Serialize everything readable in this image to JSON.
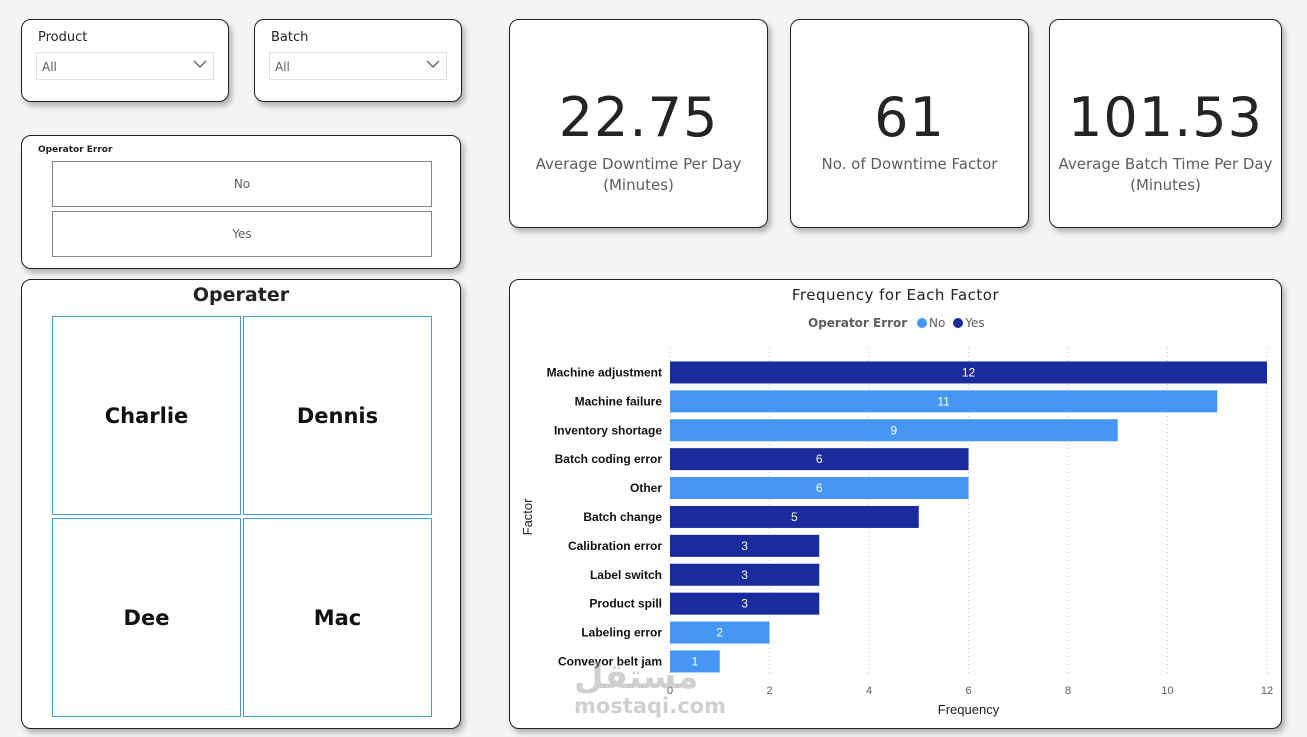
{
  "slicers": {
    "product": {
      "label": "Product",
      "value": "All"
    },
    "batch": {
      "label": "Batch",
      "value": "All"
    },
    "operator_error": {
      "label": "Operator Error",
      "options": [
        "No",
        "Yes"
      ]
    }
  },
  "operator": {
    "title": "Operater",
    "names": [
      "Charlie",
      "Dennis",
      "Dee",
      "Mac"
    ]
  },
  "kpis": [
    {
      "value": "22.75",
      "label": "Average Downtime Per Day (Minutes)"
    },
    {
      "value": "61",
      "label": "No. of Downtime Factor"
    },
    {
      "value": "101.53",
      "label": "Average Batch Time Per Day (Minutes)"
    }
  ],
  "colors": {
    "no": "#4596f5",
    "yes": "#1a2b9e",
    "border": "#222222",
    "tile_border": "#4a9fd8"
  },
  "watermark": {
    "arabic": "مستقل",
    "latin": "mostaqi.com"
  },
  "chart_data": {
    "type": "bar",
    "orientation": "horizontal",
    "title": "Frequency for Each Factor",
    "xlabel": "Frequency",
    "ylabel": "Factor",
    "legend_title": "Operator Error",
    "legend": [
      "No",
      "Yes"
    ],
    "legend_position": "top-center",
    "xlim": [
      0,
      12
    ],
    "xticks": [
      0,
      2,
      4,
      6,
      8,
      10,
      12
    ],
    "grid": "vertical-dotted",
    "categories": [
      "Machine adjustment",
      "Machine failure",
      "Inventory shortage",
      "Batch coding error",
      "Other",
      "Batch change",
      "Calibration error",
      "Label switch",
      "Product spill",
      "Labeling error",
      "Conveyor belt jam"
    ],
    "values": [
      12,
      11,
      9,
      6,
      6,
      5,
      3,
      3,
      3,
      2,
      1
    ],
    "operator_error": [
      "Yes",
      "No",
      "No",
      "Yes",
      "No",
      "Yes",
      "Yes",
      "Yes",
      "Yes",
      "No",
      "No"
    ]
  }
}
